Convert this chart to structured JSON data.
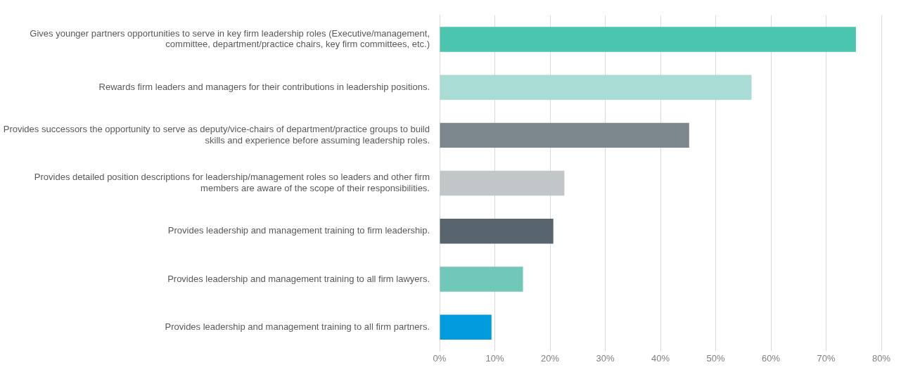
{
  "chart_data": {
    "type": "bar",
    "orientation": "horizontal",
    "categories": [
      "Gives younger partners opportunities to serve in key firm leadership roles (Executive/management, committee, department/practice chairs, key firm committees, etc.)",
      "Rewards firm leaders and managers for their contributions in leadership positions.",
      "Provides successors the opportunity to serve as deputy/vice-chairs of department/practice groups to build skills and experience before assuming leadership roles.",
      "Provides detailed position descriptions for leadership/management roles so leaders and other firm members are aware of the scope of their responsibilities.",
      "Provides leadership and management training to firm leadership.",
      "Provides leadership and management training to all firm lawyers.",
      "Provides leadership and management training to all firm partners."
    ],
    "values": [
      75.4,
      56.5,
      45.2,
      22.6,
      20.6,
      15.1,
      9.4
    ],
    "colors": [
      "#4bc4b0",
      "#a9dcd5",
      "#7b868d",
      "#c1c6c9",
      "#59656e",
      "#70c9b8",
      "#009cdd"
    ],
    "xlim": [
      0,
      80
    ],
    "xticks": [
      {
        "value": 0,
        "label": "0%"
      },
      {
        "value": 10,
        "label": "10%"
      },
      {
        "value": 20,
        "label": "20%"
      },
      {
        "value": 30,
        "label": "30%"
      },
      {
        "value": 40,
        "label": "40%"
      },
      {
        "value": 50,
        "label": "50%"
      },
      {
        "value": 60,
        "label": "60%"
      },
      {
        "value": 70,
        "label": "70%"
      },
      {
        "value": 80,
        "label": "80%"
      }
    ],
    "grid": "x",
    "legend": false
  }
}
